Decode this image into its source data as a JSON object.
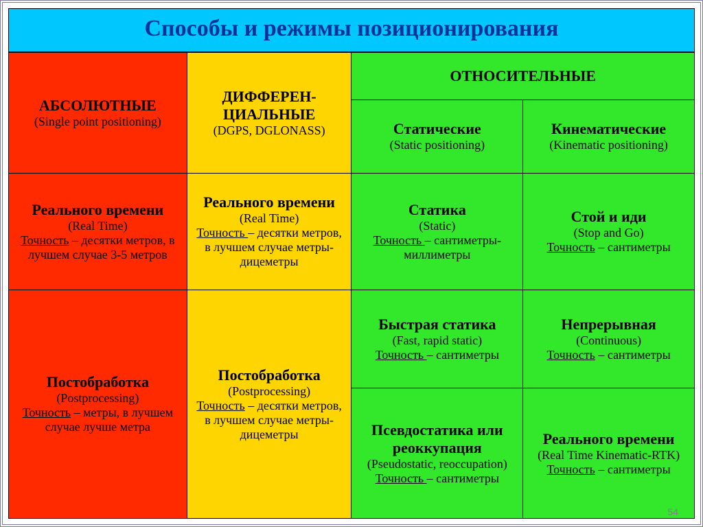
{
  "colors": {
    "title_bg": "#00c8ff",
    "title_fg": "#003399",
    "red": "#ff2a00",
    "yellow": "#ffd500",
    "green": "#33e82a"
  },
  "title": "Способы и режимы позиционирования",
  "headers": {
    "abs_main": "АБСОЛЮТНЫЕ",
    "abs_sub": "(Single point positioning)",
    "diff_main": "ДИФФЕРЕН-\nЦИАЛЬНЫЕ",
    "diff_sub": "(DGPS, DGLONASS)",
    "rel_main": "ОТНОСИТЕЛЬНЫЕ",
    "static_main": "Статические",
    "static_sub": "(Static positioning)",
    "kin_main": "Кинематические",
    "kin_sub": "(Kinematic positioning)"
  },
  "cells": {
    "abs_rt_title": "Реального времени",
    "abs_rt_en": "(Real Time)",
    "abs_rt_acc_label": "Точность",
    "abs_rt_acc_text": " – десятки метров, в лучшем случае 3-5 метров",
    "diff_rt_title": "Реального времени",
    "diff_rt_en": "(Real Time)",
    "diff_rt_acc_label": "Точность ",
    "diff_rt_acc_text": "– десятки метров, в лучшем случае метры-дицеметры",
    "static_title": "Статика",
    "static_en": "(Static)",
    "static_acc_label": "Точность ",
    "static_acc_text": "– сантиметры-миллиметры",
    "stopgo_title": "Стой и иди",
    "stopgo_en": "(Stop and Go)",
    "stopgo_acc_label": "Точность",
    "stopgo_acc_text": " – сантиметры",
    "abs_pp_title": "Постобработка",
    "abs_pp_en": "(Postprocessing)",
    "abs_pp_acc_label": "Точность",
    "abs_pp_acc_text": " – метры, в лучшем случае лучше метра",
    "diff_pp_title": "Постобработка",
    "diff_pp_en": "(Postprocessing)",
    "diff_pp_acc_label": "Точность",
    "diff_pp_acc_text": " – десятки метров, в лучшем случае метры-дицеметры",
    "fast_title": "Быстрая статика",
    "fast_en": "(Fast, rapid static)",
    "fast_acc_label": "Точность ",
    "fast_acc_text": "– сантиметры",
    "pseudo_title": "Псевдостатика или реоккупация",
    "pseudo_en": "(Pseudostatic, reoccupation)",
    "pseudo_acc_label": "Точность ",
    "pseudo_acc_text": "– сантиметры",
    "cont_title": "Непрерывная",
    "cont_en": "(Continuous)",
    "cont_acc_label": "Точность",
    "cont_acc_text": " – сантиметры",
    "rtk_title": "Реального времени",
    "rtk_en": "(Real Time Kinematic-RTK)",
    "rtk_acc_label": "Точность",
    "rtk_acc_text": " – сантиметры"
  },
  "page_number": "54"
}
